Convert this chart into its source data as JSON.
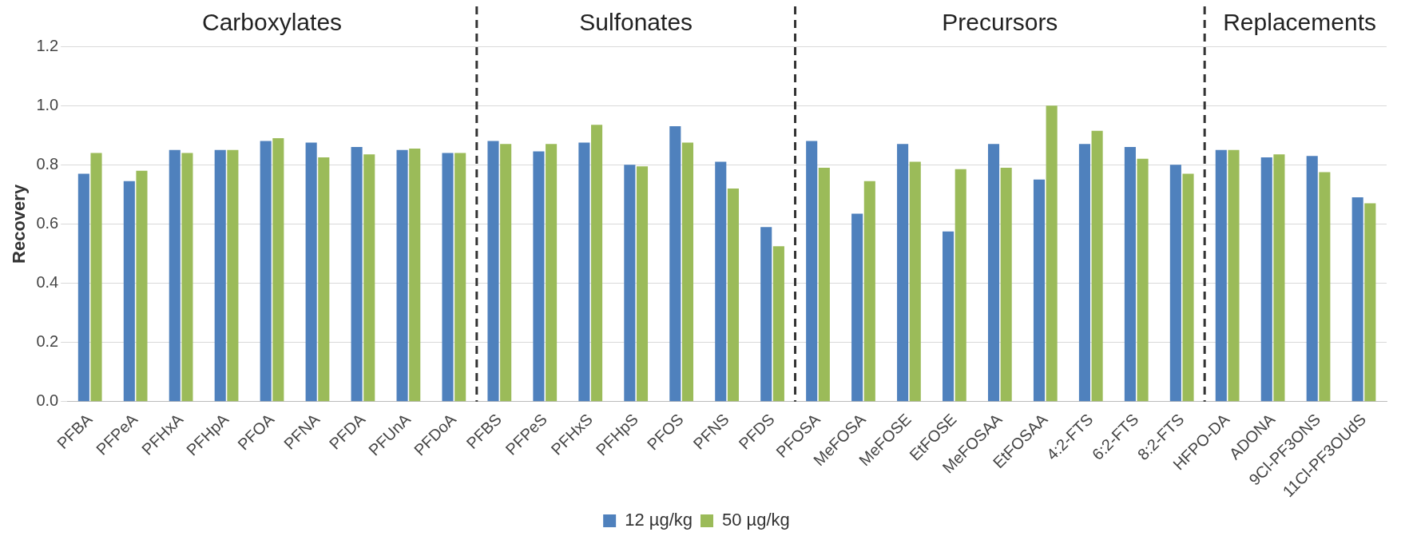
{
  "chart_data": {
    "type": "bar",
    "ylabel": "Recovery",
    "categories": [
      "PFBA",
      "PFPeA",
      "PFHxA",
      "PFHpA",
      "PFOA",
      "PFNA",
      "PFDA",
      "PFUnA",
      "PFDoA",
      "PFBS",
      "PFPeS",
      "PFHxS",
      "PFHpS",
      "PFOS",
      "PFNS",
      "PFDS",
      "PFOSA",
      "MeFOSA",
      "MeFOSE",
      "EtFOSE",
      "MeFOSAA",
      "EtFOSAA",
      "4:2-FTS",
      "6:2-FTS",
      "8:2-FTS",
      "HFPO-DA",
      "ADONA",
      "9Cl-PF3ONS",
      "11Cl-PF3OUdS"
    ],
    "series": [
      {
        "name": "12 µg/kg",
        "color": "#4f81bd",
        "values": [
          0.77,
          0.745,
          0.85,
          0.85,
          0.88,
          0.875,
          0.86,
          0.85,
          0.84,
          0.88,
          0.845,
          0.875,
          0.8,
          0.93,
          0.81,
          0.59,
          0.88,
          0.635,
          0.87,
          0.575,
          0.87,
          0.75,
          0.87,
          0.86,
          0.8,
          0.85,
          0.825,
          0.83,
          0.69
        ]
      },
      {
        "name": "50 µg/kg",
        "color": "#9bbb59",
        "values": [
          0.84,
          0.78,
          0.84,
          0.85,
          0.89,
          0.825,
          0.835,
          0.855,
          0.84,
          0.87,
          0.87,
          0.935,
          0.795,
          0.875,
          0.72,
          0.525,
          0.79,
          0.745,
          0.81,
          0.785,
          0.79,
          1.0,
          0.915,
          0.82,
          0.77,
          0.85,
          0.835,
          0.775,
          0.67
        ]
      }
    ],
    "ylim": [
      0,
      1.2
    ],
    "yticks": [
      {
        "value": 0,
        "label": "0.0"
      },
      {
        "value": 0.2,
        "label": "0.2"
      },
      {
        "value": 0.4,
        "label": "0.4"
      },
      {
        "value": 0.6,
        "label": "0.6"
      },
      {
        "value": 0.8,
        "label": "0.8"
      },
      {
        "value": 1,
        "label": "1.0"
      },
      {
        "value": 1.2,
        "label": "1.2"
      }
    ],
    "grid": "y",
    "legend": "bottom",
    "annotations": [
      "Carboxylates",
      "Sulfonates",
      "Precursors",
      "Replacements"
    ]
  }
}
